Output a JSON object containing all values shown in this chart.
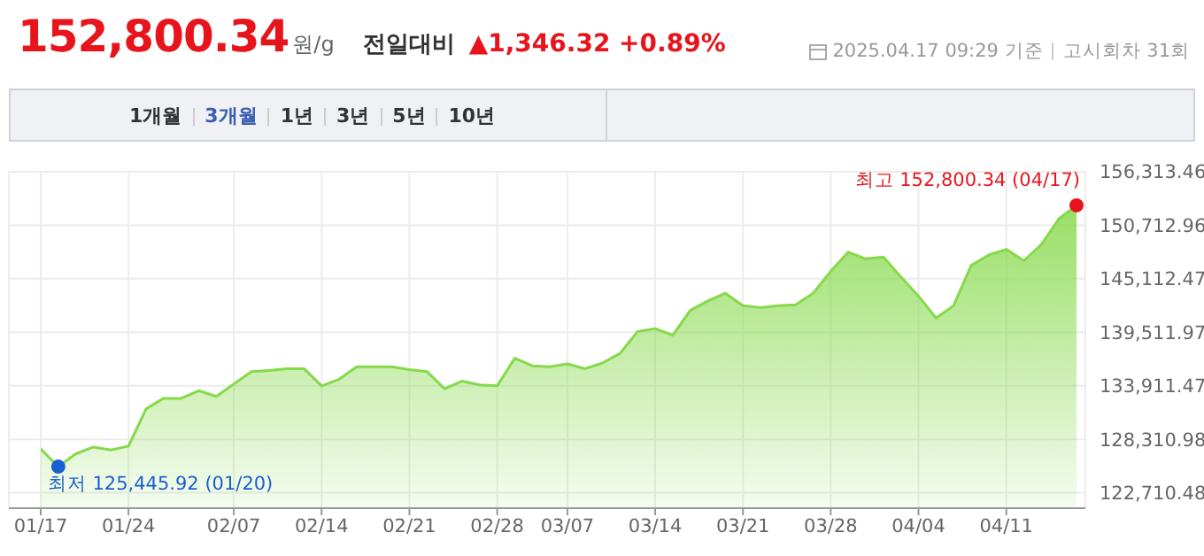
{
  "chart_data": {
    "type": "area",
    "title": "152,800.34원/g",
    "subtitle": "전일대비 ▲1,346.32 +0.89%",
    "annotations": [
      "2025.04.17 09:29 기준",
      "고시회차 31회",
      "1개월",
      "3개월",
      "1년",
      "3년",
      "5년",
      "10년",
      "최저 125,445.92 (01/20)",
      "최고 152,800.34 (04/17)"
    ],
    "categories": [
      "01/17",
      null,
      null,
      null,
      null,
      "01/24",
      null,
      null,
      null,
      null,
      null,
      "02/07",
      null,
      null,
      null,
      null,
      "02/14",
      null,
      null,
      null,
      null,
      "02/21",
      null,
      null,
      null,
      null,
      "02/28",
      null,
      null,
      null,
      "03/07",
      null,
      null,
      null,
      null,
      "03/14",
      null,
      null,
      null,
      null,
      "03/21",
      null,
      null,
      null,
      null,
      "03/28",
      null,
      null,
      null,
      null,
      "04/04",
      null,
      null,
      null,
      null,
      "04/11",
      null,
      null,
      null,
      null
    ],
    "series": [
      {
        "color": "#86d94a",
        "values": [
          127300,
          125445.92,
          126800,
          127500,
          127200,
          127600,
          131500,
          132600,
          132600,
          133400,
          132800,
          134100,
          135400,
          135500,
          135700,
          135700,
          133900,
          134600,
          135900,
          135900,
          135900,
          135600,
          135400,
          133600,
          134400,
          134000,
          133900,
          136800,
          136000,
          135900,
          136200,
          135700,
          136300,
          137300,
          139600,
          139900,
          139200,
          141800,
          142800,
          143600,
          142300,
          142100,
          142300,
          142400,
          143600,
          145900,
          147900,
          147200,
          147400,
          145300,
          143300,
          141000,
          142300,
          146500,
          147600,
          148200,
          147000,
          148700,
          151400,
          152800.34
        ]
      }
    ],
    "ylim": [
      121100,
      156313.46
    ],
    "yticks": [
      {
        "value": 122710.48,
        "label": "122,710.48"
      },
      {
        "value": 128310.98,
        "label": "128,310.98"
      },
      {
        "value": 133911.47,
        "label": "133,911.47"
      },
      {
        "value": 139511.97,
        "label": "139,511.97"
      },
      {
        "value": 145112.47,
        "label": "145,112.47"
      },
      {
        "value": 150712.96,
        "label": "150,712.96"
      },
      {
        "value": 156313.46,
        "label": "156,313.46"
      }
    ],
    "grid": true,
    "legend": false
  }
}
